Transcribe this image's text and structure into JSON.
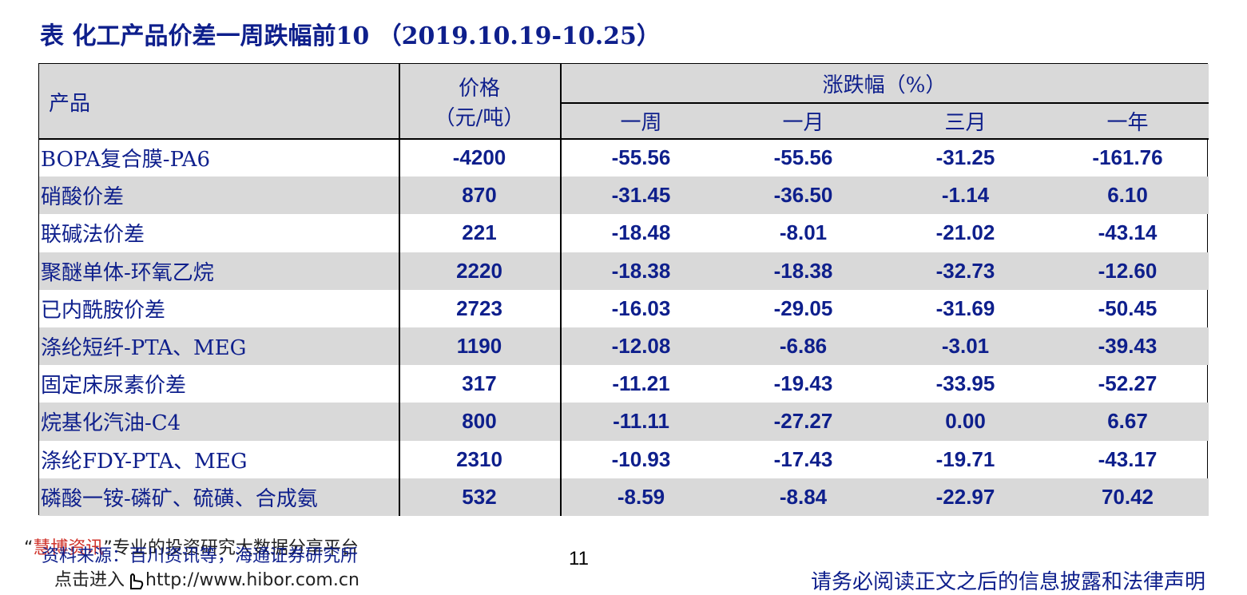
{
  "title": "表 化工产品价差一周跌幅前10 （2019.10.19-10.25）",
  "table": {
    "header": {
      "product": "产品",
      "price": "价格",
      "price_unit": "（元/吨）",
      "change": "涨跌幅（%）",
      "periods": [
        "一周",
        "一月",
        "三月",
        "一年"
      ]
    },
    "rows": [
      [
        "BOPA复合膜-PA6",
        "-4200",
        "-55.56",
        "-55.56",
        "-31.25",
        "-161.76"
      ],
      [
        "硝酸价差",
        "870",
        "-31.45",
        "-36.50",
        "-1.14",
        "6.10"
      ],
      [
        "联碱法价差",
        "221",
        "-18.48",
        "-8.01",
        "-21.02",
        "-43.14"
      ],
      [
        "聚醚单体-环氧乙烷",
        "2220",
        "-18.38",
        "-18.38",
        "-32.73",
        "-12.60"
      ],
      [
        "已内酰胺价差",
        "2723",
        "-16.03",
        "-29.05",
        "-31.69",
        "-50.45"
      ],
      [
        "涤纶短纤-PTA、MEG",
        "1190",
        "-12.08",
        "-6.86",
        "-3.01",
        "-39.43"
      ],
      [
        "固定床尿素价差",
        "317",
        "-11.21",
        "-19.43",
        "-33.95",
        "-52.27"
      ],
      [
        "烷基化汽油-C4",
        "800",
        "-11.11",
        "-27.27",
        "0.00",
        "6.67"
      ],
      [
        "涤纶FDY-PTA、MEG",
        "2310",
        "-10.93",
        "-17.43",
        "-19.71",
        "-43.17"
      ],
      [
        "磷酸一铵-磷矿、硫磺、合成氨",
        "532",
        "-8.59",
        "-8.84",
        "-22.97",
        "70.42"
      ]
    ]
  },
  "footer": {
    "watermark": {
      "open_quote": "“",
      "brand": "慧博资讯",
      "rest": "”专业的投资研究大数据分享平台"
    },
    "source": "资料来源：百川资讯等，海通证券研究所",
    "page": "11",
    "link_prefix": "点击进入",
    "link": "http://www.hibor.com.cn",
    "disclaimer": "请务必阅读正文之后的信息披露和法律声明"
  }
}
